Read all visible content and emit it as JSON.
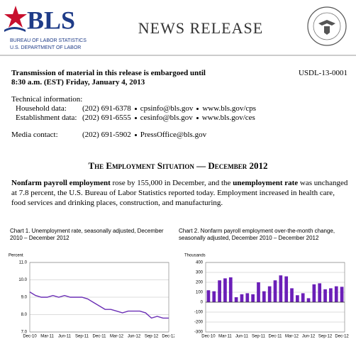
{
  "header": {
    "logo": "BLS",
    "agency": "BUREAU OF LABOR STATISTICS",
    "department": "U.S. DEPARTMENT OF LABOR",
    "title": "NEWS RELEASE"
  },
  "embargo": {
    "lines": [
      "Transmission of material in this release is embargoed until",
      "8:30 a.m. (EST) Friday, January 4, 2013"
    ],
    "release_id": "USDL-13-0001"
  },
  "contacts": {
    "heading": "Technical information:",
    "rows": [
      {
        "label": "Household data:",
        "phone": "(202) 691-6378",
        "email": "cpsinfo@bls.gov",
        "web": "www.bls.gov/cps"
      },
      {
        "label": "Establishment data:",
        "phone": "(202) 691-6555",
        "email": "cesinfo@bls.gov",
        "web": "www.bls.gov/ces"
      }
    ],
    "media": {
      "label": "Media contact:",
      "phone": "(202) 691-5902",
      "email": "PressOffice@bls.gov"
    }
  },
  "release_title": "The Employment Situation — December 2012",
  "summary": [
    {
      "text": "Nonfarm payroll employment",
      "bold": true
    },
    {
      "text": " rose by 155,000 in December, and the ",
      "bold": false
    },
    {
      "text": "unemployment rate",
      "bold": true
    },
    {
      "text": " was unchanged at 7.8 percent, the U.S. Bureau of Labor Statistics reported today. Employment increased in health care, food services and drinking places, construction, and manufacturing.",
      "bold": false
    }
  ],
  "charts": [
    {
      "type": "line",
      "title": "Chart 1. Unemployment rate, seasonally adjusted, December 2010 – December 2012",
      "unit": "Percent",
      "categories": [
        "Dec-10",
        null,
        null,
        "Mar-11",
        null,
        null,
        "Jun-11",
        null,
        null,
        "Sep-11",
        null,
        null,
        "Dec-11",
        null,
        null,
        "Mar-12",
        null,
        null,
        "Jun-12",
        null,
        null,
        "Sep-12",
        null,
        null,
        "Dec-12"
      ],
      "values": [
        9.3,
        9.1,
        9.0,
        9.0,
        9.1,
        9.0,
        9.1,
        9.0,
        9.0,
        9.0,
        8.9,
        8.7,
        8.5,
        8.3,
        8.3,
        8.2,
        8.1,
        8.2,
        8.2,
        8.2,
        8.1,
        7.8,
        7.9,
        7.8,
        7.8
      ],
      "color": "#6b2fb5",
      "ylim": [
        7.0,
        11.0
      ],
      "yticks": [
        {
          "value": 7.0,
          "label": "7.0"
        },
        {
          "value": 8.0,
          "label": "8.0"
        },
        {
          "value": 9.0,
          "label": "9.0"
        },
        {
          "value": 10.0,
          "label": "10.0"
        },
        {
          "value": 11.0,
          "label": "11.0"
        }
      ],
      "grid": true
    },
    {
      "type": "bar",
      "title": "Chart 2. Nonfarm payroll employment over-the-month change, seasonally adjusted, December 2010 – December 2012",
      "unit": "Thousands",
      "categories": [
        "Dec-10",
        null,
        null,
        "Mar-11",
        null,
        null,
        "Jun-11",
        null,
        null,
        "Sep-11",
        null,
        null,
        "Dec-11",
        null,
        null,
        "Mar-12",
        null,
        null,
        "Jun-12",
        null,
        null,
        "Sep-12",
        null,
        null,
        "Dec-12"
      ],
      "values": [
        120,
        110,
        220,
        240,
        250,
        50,
        80,
        90,
        80,
        200,
        110,
        160,
        220,
        270,
        260,
        140,
        70,
        90,
        40,
        180,
        190,
        130,
        140,
        160,
        155
      ],
      "color": "#6b1fb8",
      "ylim": [
        -300,
        400
      ],
      "yticks": [
        -300,
        -200,
        -100,
        0,
        100,
        200,
        300,
        400
      ],
      "grid": true
    }
  ]
}
